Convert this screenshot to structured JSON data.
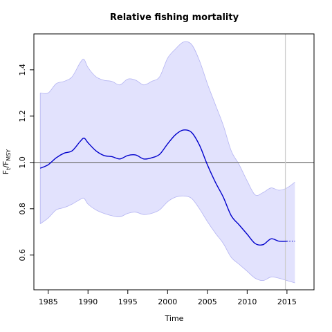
{
  "chart_data": {
    "type": "line",
    "title": "Relative fishing mortality",
    "xlabel": "Time",
    "ylabel_main": "F",
    "ylabel_sub1": "t",
    "ylabel_mid": "/F",
    "ylabel_sub2": "MSY",
    "xlim": [
      1983.2,
      2018.4
    ],
    "ylim": [
      0.45,
      1.555
    ],
    "x_ticks": [
      1985,
      1990,
      1995,
      2000,
      2005,
      2010,
      2015
    ],
    "x_tick_labels": [
      "1985",
      "1990",
      "1995",
      "2000",
      "2005",
      "2010",
      "2015"
    ],
    "y_ticks": [
      0.6,
      0.8,
      1.0,
      1.2,
      1.4
    ],
    "y_tick_labels": [
      "0.6",
      "0.8",
      "1.0",
      "1.2",
      "1.4"
    ],
    "reference_hline": 1.0,
    "reference_vline": 2014.8,
    "grid": false,
    "colors": {
      "line": "#0000cc",
      "band_fill": "#e2e2fd",
      "band_edge": "#b4b4f2",
      "hline": "#7a7a7a",
      "vline": "#cccccc"
    },
    "series": [
      {
        "role": "estimate",
        "x": [
          1984,
          1985,
          1986,
          1987,
          1988,
          1989,
          1989.5,
          1990,
          1991,
          1992,
          1993,
          1994,
          1995,
          1996,
          1997,
          1998,
          1999,
          2000,
          2001,
          2002,
          2003,
          2004,
          2005,
          2006,
          2007,
          2008,
          2009,
          2010,
          2011,
          2012,
          2013,
          2014,
          2015
        ],
        "values": [
          0.975,
          0.99,
          1.02,
          1.04,
          1.05,
          1.09,
          1.105,
          1.085,
          1.05,
          1.03,
          1.025,
          1.015,
          1.03,
          1.032,
          1.015,
          1.02,
          1.035,
          1.08,
          1.12,
          1.14,
          1.13,
          1.075,
          0.99,
          0.915,
          0.85,
          0.77,
          0.73,
          0.69,
          0.65,
          0.645,
          0.67,
          0.66,
          0.66
        ]
      },
      {
        "role": "projection",
        "x": [
          2015,
          2016
        ],
        "values": [
          0.66,
          0.66
        ]
      },
      {
        "role": "upper",
        "x": [
          1984,
          1985,
          1986,
          1987,
          1988,
          1989,
          1989.5,
          1990,
          1991,
          1992,
          1993,
          1994,
          1995,
          1996,
          1997,
          1998,
          1999,
          2000,
          2001,
          2002,
          2003,
          2004,
          2005,
          2006,
          2007,
          2008,
          2009,
          2010,
          2011,
          2012,
          2013,
          2014,
          2015,
          2016
        ],
        "values": [
          1.3,
          1.3,
          1.34,
          1.35,
          1.37,
          1.43,
          1.445,
          1.41,
          1.37,
          1.355,
          1.35,
          1.335,
          1.36,
          1.355,
          1.335,
          1.35,
          1.37,
          1.45,
          1.49,
          1.52,
          1.51,
          1.44,
          1.34,
          1.25,
          1.16,
          1.05,
          0.99,
          0.92,
          0.86,
          0.87,
          0.89,
          0.88,
          0.89,
          0.915
        ]
      },
      {
        "role": "lower",
        "x": [
          1984,
          1985,
          1986,
          1987,
          1988,
          1989,
          1989.5,
          1990,
          1991,
          1992,
          1993,
          1994,
          1995,
          1996,
          1997,
          1998,
          1999,
          2000,
          2001,
          2002,
          2003,
          2004,
          2005,
          2006,
          2007,
          2008,
          2009,
          2010,
          2011,
          2012,
          2013,
          2014,
          2015,
          2016
        ],
        "values": [
          0.735,
          0.76,
          0.795,
          0.805,
          0.82,
          0.84,
          0.845,
          0.82,
          0.795,
          0.78,
          0.77,
          0.765,
          0.78,
          0.785,
          0.775,
          0.78,
          0.795,
          0.83,
          0.85,
          0.855,
          0.845,
          0.8,
          0.745,
          0.695,
          0.65,
          0.59,
          0.56,
          0.53,
          0.5,
          0.49,
          0.505,
          0.5,
          0.49,
          0.48
        ]
      }
    ]
  }
}
